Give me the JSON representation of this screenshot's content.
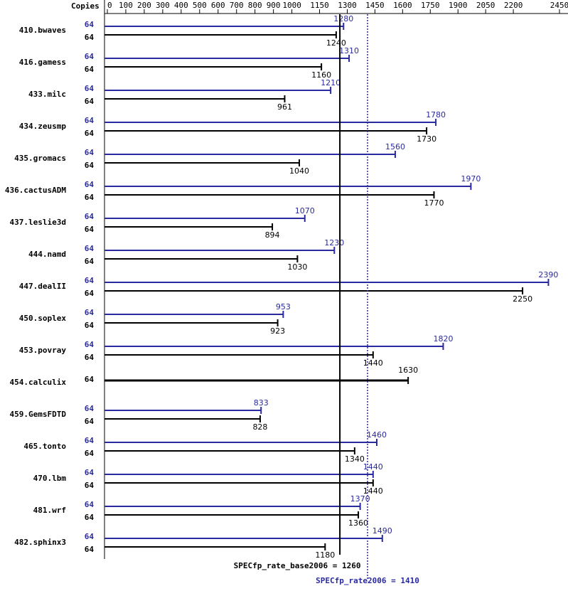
{
  "chart_data": {
    "type": "hbar",
    "copies_header": "Copies",
    "categories": [
      "410.bwaves",
      "416.gamess",
      "433.milc",
      "434.zeusmp",
      "435.gromacs",
      "436.cactusADM",
      "437.leslie3d",
      "444.namd",
      "447.dealII",
      "450.soplex",
      "453.povray",
      "454.calculix",
      "459.GemsFDTD",
      "465.tonto",
      "470.lbm",
      "481.wrf",
      "482.sphinx3"
    ],
    "series": [
      {
        "color": "#2a2aa0",
        "values": [
          1280,
          1310,
          1210,
          1780,
          1560,
          1970,
          1070,
          1230,
          2390,
          953,
          1820,
          null,
          833,
          1460,
          1440,
          1370,
          1490
        ],
        "copies": [
          64,
          64,
          64,
          64,
          64,
          64,
          64,
          64,
          64,
          64,
          64,
          null,
          64,
          64,
          64,
          64,
          64
        ]
      },
      {
        "color": "#000000",
        "values": [
          1240,
          1160,
          961,
          1730,
          1040,
          1770,
          894,
          1030,
          2250,
          923,
          1440,
          1630,
          828,
          1340,
          1440,
          1360,
          1180
        ],
        "copies": [
          64,
          64,
          64,
          64,
          64,
          64,
          64,
          64,
          64,
          64,
          64,
          64,
          64,
          64,
          64,
          64,
          64
        ]
      }
    ],
    "xlim": [
      0,
      2450
    ],
    "xticks": [
      0,
      100,
      200,
      300,
      400,
      500,
      600,
      700,
      800,
      900,
      1000,
      1150,
      1300,
      1450,
      1600,
      1750,
      1900,
      2050,
      2200,
      2450
    ],
    "references": [
      {
        "label": "SPECfp_rate_base2006 = 1260",
        "value": 1260,
        "color": "#000000",
        "style": "solid"
      },
      {
        "label": "SPECfp_rate2006 = 1410",
        "value": 1410,
        "color": "#2a2aa0",
        "style": "dotted"
      }
    ]
  }
}
